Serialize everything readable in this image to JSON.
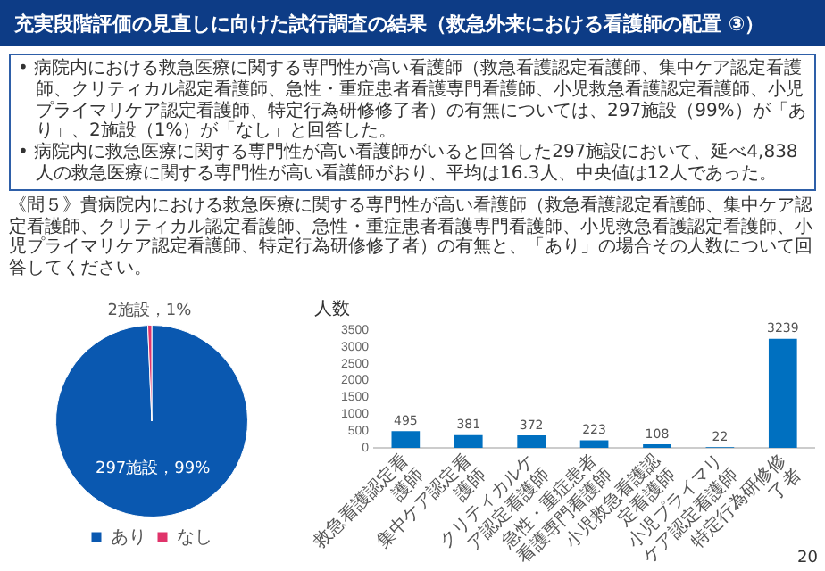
{
  "chart_data": [
    {
      "type": "pie",
      "title": "充実段階評価の見直しに向けた試行調査の結果（救急外来における看護師の配置 ③）",
      "subtitle": "《問５》貴病院内における救急医療に関する専門性が高い看護師（救急看護認定看護師、集中ケア認定看護師、クリティカル認定看護師、急性・重症患者看護専門看護師、小児救急看護認定看護師、小児プライマリケア認定看護師、特定行為研修修了者）の有無と、「あり」の場合その人数について回答してください。",
      "annotations": [
        "• 病院内における救急医療に関する専門性が高い看護師（救急看護認定看護師、集中ケア認定看護師、クリティカル認定看護師、急性・重症患者看護専門看護師、小児救急看護認定看護師、小児プライマリケア認定看護師、特定行為研修修了者）の有無については、297施設（99%）が「あり」、2施設（1%）が「なし」と回答した。",
        "• 病院内に救急医療に関する専門性が高い看護師がいると回答した297施設において、延べ4,838人の救急医療に関する専門性が高い看護師がおり、平均は16.3人、中央値は12人であった。"
      ],
      "categories": [
        "あり",
        "なし"
      ],
      "values": [
        297,
        2
      ],
      "colors": [
        "#0a58b0",
        "#e0336a"
      ],
      "value_labels": [
        "297施設，99%",
        "2施設，1%"
      ],
      "legend": "bottom"
    },
    {
      "type": "bar",
      "ylabel": "人数",
      "categories": [
        "救急看護認定看護師",
        "集中ケア認定看護師",
        "クリティカルケア認定看護師",
        "急性・重症患者看護専門看護師",
        "小児救急看護認定看護師",
        "小児プライマリケア認定看護師",
        "特定行為研修修了者"
      ],
      "values": [
        495,
        381,
        372,
        223,
        108,
        22,
        3239
      ],
      "color": "#0070c0",
      "ylim": [
        0,
        3500
      ],
      "yticks": [
        0,
        500,
        1000,
        1500,
        2000,
        2500,
        3000,
        3500
      ],
      "data_labels": true,
      "annotations": [
        "20"
      ]
    }
  ]
}
